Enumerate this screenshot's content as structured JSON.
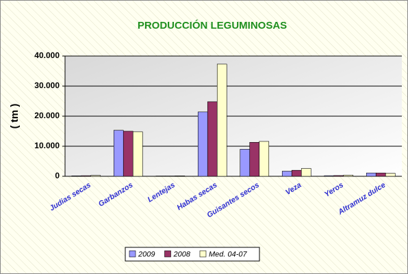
{
  "chart_data": {
    "type": "bar",
    "title": "PRODUCCIÓN LEGUMINOSAS",
    "y_label": "( tm )",
    "categories": [
      "Judias secas",
      "Garbanzos",
      "Lentejas",
      "Habas secas",
      "Guisantes secos",
      "Veza",
      "Yeros",
      "Altramuz dulce"
    ],
    "series": [
      {
        "name": "2009",
        "color": "#9999ff",
        "values": [
          150,
          15300,
          100,
          21400,
          9000,
          1700,
          200,
          1100
        ]
      },
      {
        "name": "2008",
        "color": "#993366",
        "values": [
          200,
          15000,
          100,
          24800,
          11300,
          2000,
          250,
          1100
        ]
      },
      {
        "name": "Med. 04-07",
        "color": "#ffffcc",
        "values": [
          300,
          14800,
          150,
          37300,
          11600,
          2600,
          400,
          1000
        ]
      }
    ],
    "ylim": [
      0,
      40000
    ],
    "yticks": [
      0,
      {
        "value": 10000,
        "label": "10.000"
      },
      {
        "value": 20000,
        "label": "20.000"
      },
      {
        "value": 30000,
        "label": "30.000"
      },
      {
        "value": 40000,
        "label": "40.000"
      }
    ],
    "grid": true,
    "legend": "bottom"
  }
}
